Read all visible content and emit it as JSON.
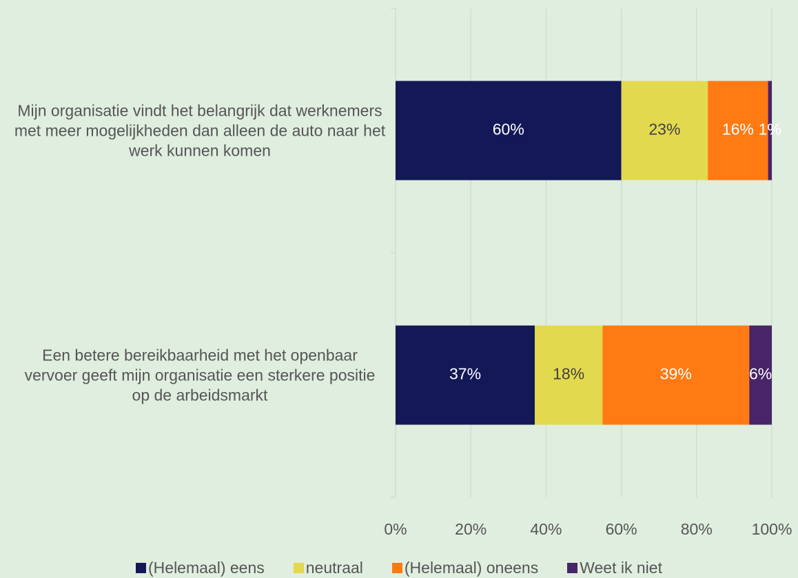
{
  "chart_data": {
    "type": "stacked_bar_horizontal",
    "categories": [
      "Mijn organisatie vindt het belangrijk dat werknemers met meer mogelijkheden dan alleen de auto naar het werk kunnen komen",
      "Een betere bereikbaarheid met het openbaar vervoer geeft mijn organisatie een sterkere positie op de arbeidsmarkt"
    ],
    "series": [
      {
        "name": "(Helemaal) eens",
        "color": "#131857",
        "label_color": "#ffffff",
        "values": [
          60,
          37
        ],
        "value_labels": [
          "60%",
          "37%"
        ]
      },
      {
        "name": "neutraal",
        "color": "#e3d94f",
        "label_color": "#404040",
        "values": [
          23,
          18
        ],
        "value_labels": [
          "23%",
          "18%"
        ]
      },
      {
        "name": "(Helemaal) oneens",
        "color": "#ff7a13",
        "label_color": "#ffffff",
        "values": [
          16,
          39
        ],
        "value_labels": [
          "16%",
          "39%"
        ]
      },
      {
        "name": "Weet ik niet",
        "color": "#482468",
        "label_color": "#ffffff",
        "values": [
          1,
          6
        ],
        "value_labels": [
          "1%",
          "6%"
        ]
      }
    ],
    "xlim": [
      0,
      100
    ],
    "xticks": [
      {
        "value": 0,
        "label": "0%"
      },
      {
        "value": 20,
        "label": "20%"
      },
      {
        "value": 40,
        "label": "40%"
      },
      {
        "value": 60,
        "label": "60%"
      },
      {
        "value": 80,
        "label": "80%"
      },
      {
        "value": 100,
        "label": "100%"
      }
    ],
    "grid": true,
    "legend": "bottom"
  }
}
